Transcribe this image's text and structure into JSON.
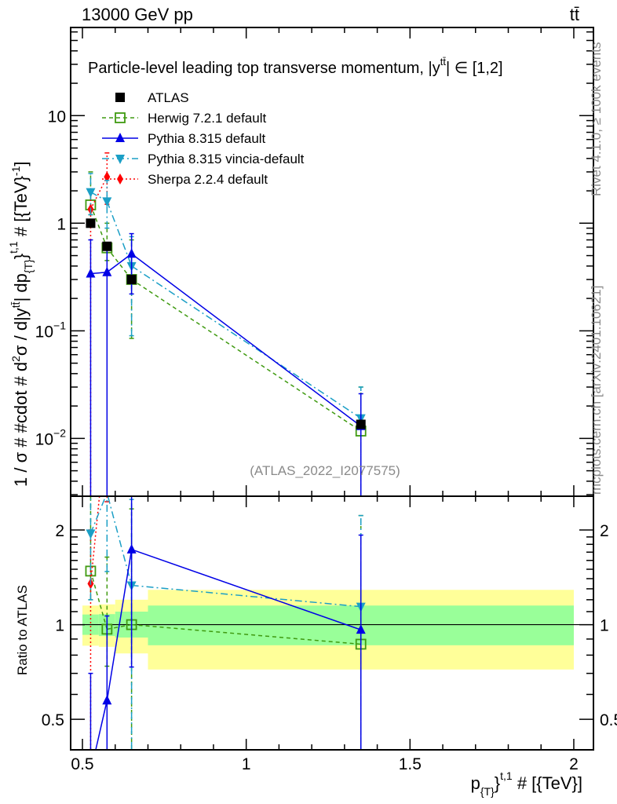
{
  "header": {
    "energy": "13000 GeV pp",
    "process": "tt̄"
  },
  "title": {
    "main": "Particle-level leading top transverse momentum, |y",
    "sup": "tt̄",
    "end": "| ∈ [1,2]"
  },
  "side": {
    "rivet": "Rivet 4.1.0, ≥ 100k events",
    "mcplots": "mcplots.cern.ch [arXiv:2401.10621]"
  },
  "analysis": "(ATLAS_2022_I2077575)",
  "chart_data": {
    "type": "line",
    "title": "Particle-level leading top transverse momentum, |y^{tt̄}| ∈ [1,2]",
    "ylabel": {
      "a": "1 / σ # #cdot # d",
      "a_sup": "2",
      "b": "σ / d|y",
      "b_sup": "tt̄",
      "c": "| dp",
      "c_sub": "{T}",
      "d": "}",
      "d_sup": "t,1",
      "e": " # [{TeV}",
      "e_sup": "-1",
      "f": "]"
    },
    "xlabel": {
      "a": "p",
      "a_sub": "{T}",
      "b": "}",
      "b_sup": "t,1",
      "c": " # [{TeV}]"
    },
    "ratio_ylabel": "Ratio to ATLAS",
    "xlim": [
      0.464,
      2.06
    ],
    "ylim": [
      0.0029,
      66
    ],
    "ratio_ylim": [
      0.4,
      2.56
    ],
    "yscale": "log",
    "x_ticks": [
      {
        "v": 0.5,
        "label": "0.5"
      },
      {
        "v": 1,
        "label": "1"
      },
      {
        "v": 1.5,
        "label": "1.5"
      },
      {
        "v": 2,
        "label": "2"
      }
    ],
    "y_ticks": [
      {
        "v": 10,
        "label": "10"
      },
      {
        "v": 1,
        "label": "1"
      },
      {
        "v": 0.1,
        "label": "10",
        "sup": "−1"
      },
      {
        "v": 0.01,
        "label": "10",
        "sup": "−2"
      }
    ],
    "ratio_ticks": [
      {
        "v": 0.5,
        "label": "0.5"
      },
      {
        "v": 1,
        "label": "1"
      },
      {
        "v": 2,
        "label": "2"
      }
    ],
    "bin_edges": [
      0.5,
      0.55,
      0.6,
      0.7,
      2.0
    ],
    "x": [
      0.525,
      0.575,
      0.65,
      1.35
    ],
    "ratio_band_outer": [
      [
        0.857,
        1.15
      ],
      [
        0.85,
        1.16
      ],
      [
        0.81,
        1.2
      ],
      [
        0.72,
        1.29
      ]
    ],
    "ratio_band_inner": [
      [
        0.928,
        1.077
      ],
      [
        0.92,
        1.08
      ],
      [
        0.91,
        1.1
      ],
      [
        0.86,
        1.15
      ]
    ],
    "band_colors": {
      "outer": "#ffff99",
      "inner": "#99ff99"
    },
    "legend_position": "top-left",
    "series": [
      {
        "name": "ATLAS",
        "color": "#000000",
        "marker": "square",
        "dash": "",
        "line": false,
        "x": [
          0.525,
          0.575,
          0.65,
          1.35
        ],
        "values": [
          1.0,
          0.61,
          0.3,
          0.0135
        ],
        "err_lo": [
          0.95,
          0.58,
          0.285,
          0.0128
        ],
        "err_hi": [
          1.05,
          0.64,
          0.315,
          0.0142
        ]
      },
      {
        "name": "Herwig 7.2.1 default",
        "color": "#3f9a10",
        "marker": "open-square",
        "dash": "5,4",
        "line": true,
        "x": [
          0.525,
          0.575,
          0.65,
          1.35
        ],
        "values": [
          1.48,
          0.59,
          0.3,
          0.0117
        ],
        "err_lo": [
          1.2,
          0.45,
          0.085,
          0.001
        ],
        "err_hi": [
          3.0,
          1.0,
          0.7,
          0.03
        ]
      },
      {
        "name": "Pythia 8.315 default",
        "color": "#0000e6",
        "marker": "triangle-up",
        "dash": "",
        "line": true,
        "x": [
          0.525,
          0.575,
          0.65,
          1.35
        ],
        "values": [
          0.34,
          0.35,
          0.52,
          0.013
        ],
        "err_lo": [
          0.001,
          0.001,
          0.22,
          0.001
        ],
        "err_hi": [
          0.7,
          0.65,
          0.8,
          0.026
        ]
      },
      {
        "name": "Pythia 8.315 vincia-default",
        "color": "#1b9fc6",
        "marker": "triangle-down",
        "dash": "9,4,2,4",
        "line": true,
        "x": [
          0.525,
          0.575,
          0.65,
          1.35
        ],
        "values": [
          1.95,
          1.6,
          0.4,
          0.0154
        ],
        "err_lo": [
          1.2,
          0.9,
          0.09,
          0.001
        ],
        "err_hi": [
          2.9,
          2.5,
          0.75,
          0.03
        ]
      },
      {
        "name": "Sherpa 2.2.4 default",
        "color": "#ff0000",
        "marker": "diamond",
        "dash": "2,3",
        "line": true,
        "x": [
          0.525,
          0.575
        ],
        "values": [
          1.35,
          2.7
        ],
        "err_lo": [
          0.001,
          1.5
        ],
        "err_hi": [
          2.0,
          4.5
        ]
      }
    ]
  }
}
